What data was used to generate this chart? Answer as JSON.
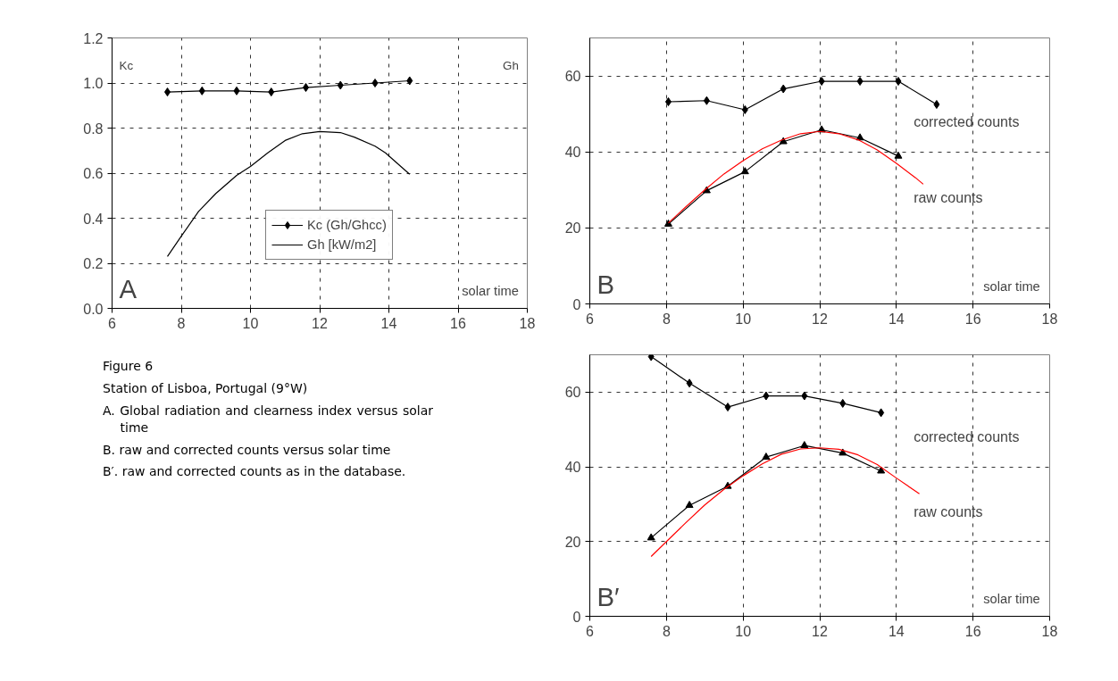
{
  "chart_data": [
    {
      "type": "line",
      "title": "A",
      "xlabel": "solar time",
      "ylabel": "Kc",
      "y2label": "Gh",
      "xlim": [
        6,
        18
      ],
      "xticks": [
        6,
        8,
        10,
        12,
        14,
        16,
        18
      ],
      "ylim": [
        0,
        1.2
      ],
      "yticks": [
        {
          "value": 0,
          "label": "0.0"
        },
        {
          "value": 0.2,
          "label": "0.2"
        },
        {
          "value": 0.4,
          "label": "0.4"
        },
        {
          "value": 0.6,
          "label": "0.6"
        },
        {
          "value": 0.8,
          "label": "0.8"
        },
        {
          "value": 1,
          "label": "1.0"
        },
        {
          "value": 1.2,
          "label": "1.2"
        }
      ],
      "grid": true,
      "legend": "center",
      "series": [
        {
          "name": "Kc (Gh/Ghcc)",
          "color": "#000000",
          "marker": "diamond",
          "x": [
            7.6,
            8.6,
            9.6,
            10.6,
            11.6,
            12.6,
            13.6,
            14.6
          ],
          "values": [
            0.96,
            0.965,
            0.965,
            0.96,
            0.98,
            0.99,
            1.0,
            1.01
          ]
        },
        {
          "name": "Gh [kW/m2]",
          "color": "#000000",
          "marker": "none",
          "x": [
            7.6,
            8,
            8.5,
            9,
            9.6,
            10,
            10.5,
            11,
            11.5,
            12,
            12.6,
            13,
            13.6,
            13.9,
            14.6
          ],
          "values": [
            0.23,
            0.32,
            0.43,
            0.51,
            0.59,
            0.63,
            0.69,
            0.745,
            0.775,
            0.785,
            0.78,
            0.76,
            0.72,
            0.69,
            0.595
          ]
        }
      ]
    },
    {
      "type": "line",
      "title": "B",
      "xlabel": "solar time",
      "xlim": [
        6,
        18
      ],
      "xticks": [
        6,
        8,
        10,
        12,
        14,
        16,
        18
      ],
      "ylim": [
        0,
        70
      ],
      "yticks": [
        0,
        20,
        40,
        60
      ],
      "grid": true,
      "series": [
        {
          "name": "corrected counts",
          "color": "#000000",
          "marker": "diamond",
          "x": [
            8.05,
            9.05,
            10.05,
            11.05,
            12.05,
            13.05,
            14.05,
            15.05
          ],
          "values": [
            53.2,
            53.5,
            51.1,
            56.6,
            58.6,
            58.6,
            58.6,
            52.5
          ]
        },
        {
          "name": "raw counts",
          "color": "#000000",
          "marker": "triangle",
          "x": [
            8.05,
            9.05,
            10.05,
            11.05,
            12.05,
            13.05,
            14.05
          ],
          "values": [
            21,
            29.8,
            34.8,
            42.7,
            45.8,
            43.7,
            38.9
          ]
        },
        {
          "color": "#ff0000",
          "marker": "none",
          "x": [
            8.05,
            8.5,
            9,
            9.5,
            10,
            10.5,
            11,
            11.5,
            12,
            12.5,
            13,
            13.5,
            14,
            14.5,
            14.7
          ],
          "values": [
            21.3,
            25.5,
            30,
            34.2,
            37.7,
            40.8,
            43.1,
            44.8,
            45.4,
            44.8,
            43.2,
            40.5,
            37,
            33.2,
            31.5
          ]
        }
      ]
    },
    {
      "type": "line",
      "title": "B′",
      "xlabel": "solar time",
      "xlim": [
        6,
        18
      ],
      "xticks": [
        6,
        8,
        10,
        12,
        14,
        16,
        18
      ],
      "ylim": [
        0,
        70
      ],
      "yticks": [
        0,
        20,
        40,
        60
      ],
      "grid": true,
      "series": [
        {
          "name": "corrected counts",
          "color": "#000000",
          "marker": "diamond",
          "x": [
            7.6,
            8.6,
            9.6,
            10.6,
            11.6,
            12.6,
            13.6
          ],
          "values": [
            69.5,
            62.4,
            56,
            59,
            59,
            57,
            54.5
          ]
        },
        {
          "name": "raw counts",
          "color": "#000000",
          "marker": "triangle",
          "x": [
            7.6,
            8.6,
            9.6,
            10.6,
            11.6,
            12.6,
            13.6
          ],
          "values": [
            21,
            29.7,
            34.8,
            42.6,
            45.7,
            43.7,
            38.9
          ]
        },
        {
          "color": "#ff0000",
          "marker": "none",
          "x": [
            7.6,
            8,
            8.5,
            9,
            9.5,
            10,
            10.5,
            11,
            11.5,
            12,
            12.5,
            13,
            13.5,
            14,
            14.6
          ],
          "values": [
            16,
            20,
            25,
            29.8,
            34,
            37.6,
            40.8,
            43.4,
            44.8,
            45.1,
            44.7,
            43.2,
            40.6,
            37,
            32.8
          ]
        }
      ]
    },
    {
      "type": "other",
      "title": "Figure 6",
      "annotations": [
        "Station of Lisboa, Portugal (9°W)",
        "A. Global radiation and clearness index versus solar time",
        "B. raw and corrected counts versus solar time",
        "B′. raw and corrected counts as in the database."
      ]
    }
  ]
}
